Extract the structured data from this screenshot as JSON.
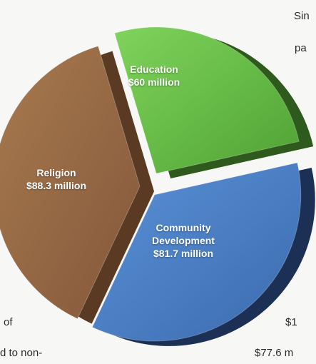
{
  "chart_data": {
    "type": "pie",
    "slices": [
      {
        "name": "Education",
        "label_lines": [
          "Education",
          "$60 million"
        ],
        "value": 60,
        "unit": "$ million",
        "color": "#5ab83c",
        "side_color": "#2f5a1e"
      },
      {
        "name": "Community Development",
        "label_lines": [
          "Community",
          "Development",
          "$81.7 million"
        ],
        "value": 81.7,
        "unit": "$ million",
        "color": "#4a7ec8",
        "side_color": "#1c2f55"
      },
      {
        "name": "Religion",
        "label_lines": [
          "Religion",
          "$88.3 million"
        ],
        "value": 88.3,
        "unit": "$ million",
        "color": "#9a6a43",
        "side_color": "#5a3a22"
      }
    ]
  },
  "body_text": {
    "top_right_1": "Sin",
    "top_right_2": "pa",
    "bottom_left_1": "of",
    "bottom_left_2": "d to non-",
    "bottom_right_1": "$1",
    "bottom_right_2": "$77.6 m"
  }
}
